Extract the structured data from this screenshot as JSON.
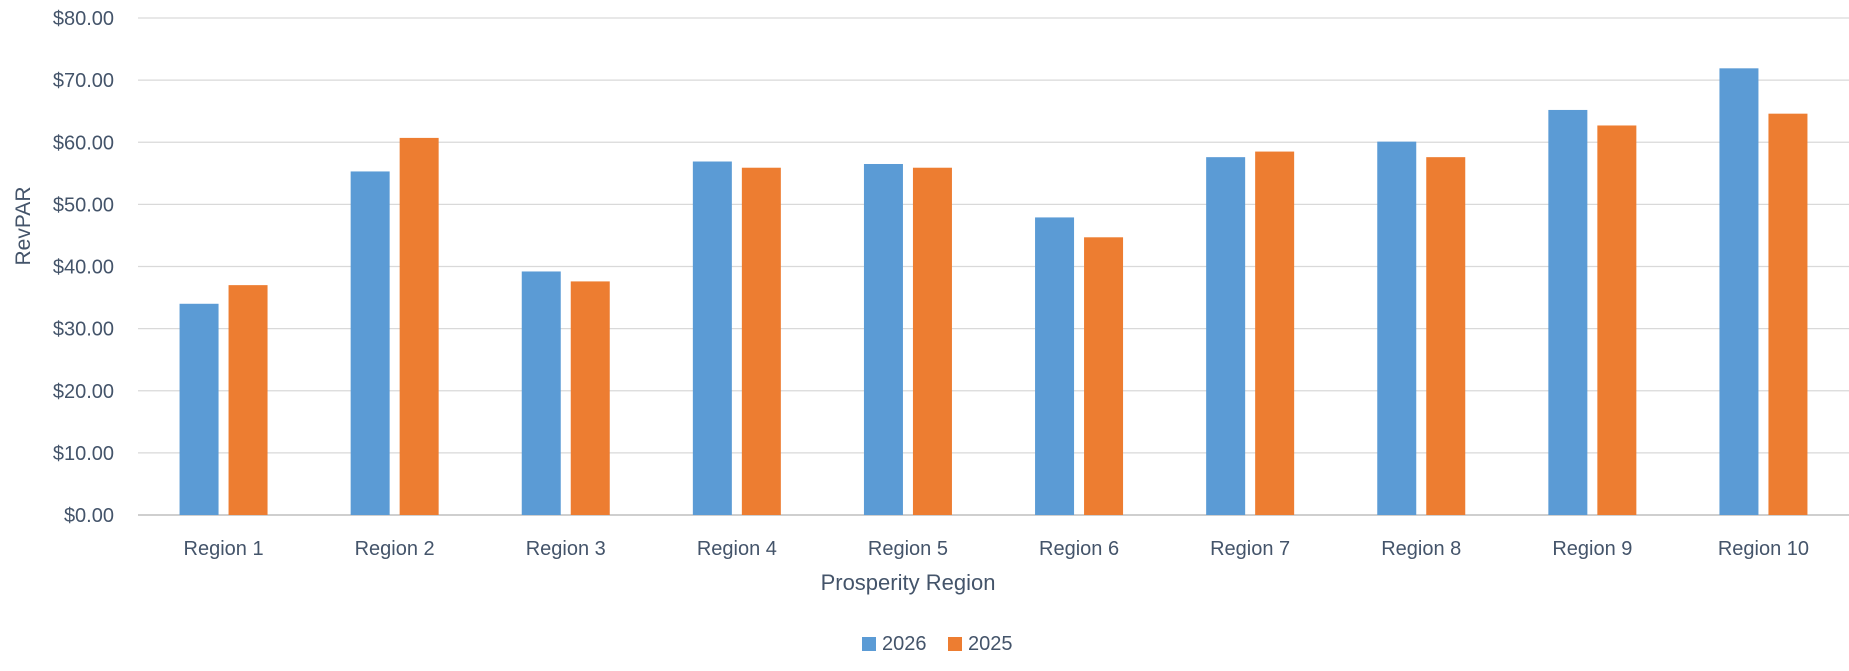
{
  "chart_data": {
    "type": "bar",
    "title": "",
    "xlabel": "Prosperity Region",
    "ylabel": "RevPAR",
    "categories": [
      "Region 1",
      "Region 2",
      "Region 3",
      "Region 4",
      "Region 5",
      "Region 6",
      "Region 7",
      "Region 8",
      "Region 9",
      "Region 10"
    ],
    "series": [
      {
        "name": "2026",
        "color": "#5B9BD5",
        "values": [
          34.0,
          55.3,
          39.2,
          56.9,
          56.5,
          47.9,
          57.6,
          60.1,
          65.2,
          71.9
        ]
      },
      {
        "name": "2025",
        "color": "#ED7D31",
        "values": [
          37.0,
          60.7,
          37.6,
          55.9,
          55.9,
          44.7,
          58.5,
          57.6,
          62.7,
          64.6
        ]
      }
    ],
    "ylim": [
      0,
      80
    ],
    "yticks": [
      0,
      10,
      20,
      30,
      40,
      50,
      60,
      70,
      80
    ],
    "ytick_labels": [
      "$0.00",
      "$10.00",
      "$20.00",
      "$30.00",
      "$40.00",
      "$50.00",
      "$60.00",
      "$70.00",
      "$80.00"
    ],
    "grid": true,
    "legend_position": "bottom"
  },
  "style": {
    "text_color": "#44546A",
    "grid_color": "#D9D9D9",
    "axis_color": "#BFBFBF"
  }
}
